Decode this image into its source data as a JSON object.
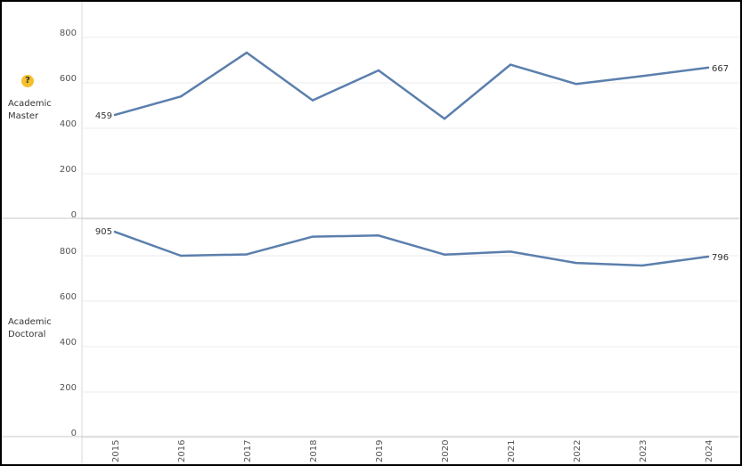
{
  "colors": {
    "line": "#5b7fad",
    "grid": "#ebebeb",
    "axis": "#d9d9d9",
    "text": "#555555"
  },
  "icons": {
    "help": "question-circle-icon",
    "help_glyph": "?"
  },
  "chart_data": {
    "type": "line",
    "x": [
      "2015",
      "2016",
      "2017",
      "2018",
      "2019",
      "2020",
      "2021",
      "2022",
      "2023",
      "2024"
    ],
    "panels": [
      {
        "label": [
          "Academic",
          "Master"
        ],
        "ylim": [
          0,
          900
        ],
        "yticks": [
          0,
          200,
          400,
          600,
          800
        ],
        "values": [
          459,
          540,
          733,
          523,
          655,
          442,
          680,
          595,
          630,
          667
        ],
        "start_label": "459",
        "end_label": "667"
      },
      {
        "label": [
          "Academic",
          "Doctoral"
        ],
        "ylim": [
          0,
          900
        ],
        "yticks": [
          0,
          200,
          400,
          600,
          800
        ],
        "values": [
          905,
          800,
          806,
          884,
          889,
          805,
          818,
          768,
          757,
          796
        ],
        "start_label": "905",
        "end_label": "796"
      }
    ]
  }
}
